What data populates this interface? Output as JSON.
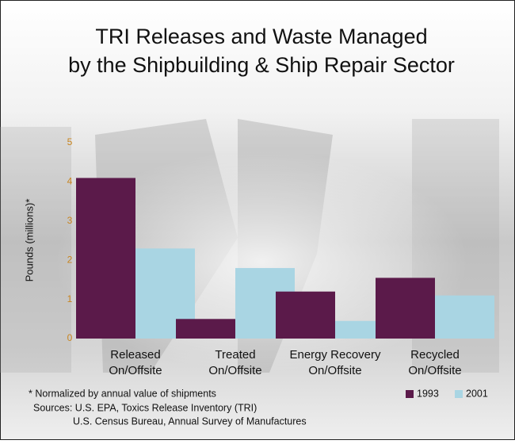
{
  "chart_data": {
    "type": "bar",
    "title": [
      "TRI Releases and Waste Managed",
      "by the Shipbuilding & Ship Repair Sector"
    ],
    "y_label": "Pounds (millions)*",
    "categories": [
      [
        "Released",
        "On/Offsite"
      ],
      [
        "Treated",
        "On/Offsite"
      ],
      [
        "Energy Recovery",
        "On/Offsite"
      ],
      [
        "Recycled",
        "On/Offsite"
      ]
    ],
    "series": [
      {
        "name": "1993",
        "color": "#5b1a4a",
        "values": [
          4.1,
          0.5,
          1.2,
          1.55
        ]
      },
      {
        "name": "2001",
        "color": "#a9d5e3",
        "values": [
          2.3,
          1.8,
          0.45,
          1.1
        ]
      }
    ],
    "ylim": [
      0,
      5
    ],
    "yticks": [
      0,
      1,
      2,
      3,
      4,
      5
    ],
    "tick_color": "#c8841e",
    "footnote": "* Normalized by annual value of shipments",
    "sources": [
      "Sources: U.S. EPA, Toxics Release Inventory (TRI)",
      "U.S. Census Bureau, Annual Survey of Manufactures"
    ]
  }
}
